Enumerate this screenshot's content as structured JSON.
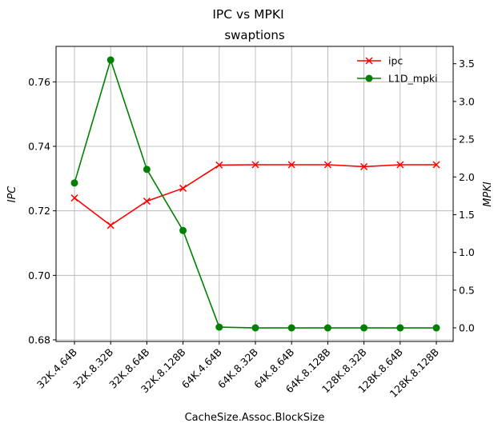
{
  "chart_data": {
    "type": "line",
    "title": "IPC vs MPKI",
    "subtitle": "swaptions",
    "xlabel": "CacheSize.Assoc.BlockSize",
    "ylabel_left": "IPC",
    "ylabel_right": "MPKI",
    "categories": [
      "32K.4.64B",
      "32K.8.32B",
      "32K.8.64B",
      "32K.8.128B",
      "64K.4.64B",
      "64K.8.32B",
      "64K.8.64B",
      "64K.8.128B",
      "128K.8.32B",
      "128K.8.64B",
      "128K.8.128B"
    ],
    "ylim_left": [
      0.6795,
      0.771
    ],
    "ylim_right": [
      -0.18,
      3.73
    ],
    "yticks_left": [
      "0.68",
      "0.70",
      "0.72",
      "0.74",
      "0.76"
    ],
    "yticks_right": [
      "0.0",
      "0.5",
      "1.0",
      "1.5",
      "2.0",
      "2.5",
      "3.0",
      "3.5"
    ],
    "grid": true,
    "legend_position": "top-right",
    "series": [
      {
        "name": "ipc",
        "axis": "left",
        "color": "#ff0000",
        "marker": "x",
        "values": [
          0.724,
          0.7155,
          0.723,
          0.727,
          0.7342,
          0.7343,
          0.7343,
          0.7343,
          0.7337,
          0.7343,
          0.7343
        ]
      },
      {
        "name": "L1D_mpki",
        "axis": "right",
        "color": "#008000",
        "marker": "o",
        "values": [
          1.92,
          3.55,
          2.1,
          1.29,
          0.01,
          0.0,
          0.0,
          0.0,
          0.0,
          0.0,
          0.0
        ]
      }
    ]
  }
}
